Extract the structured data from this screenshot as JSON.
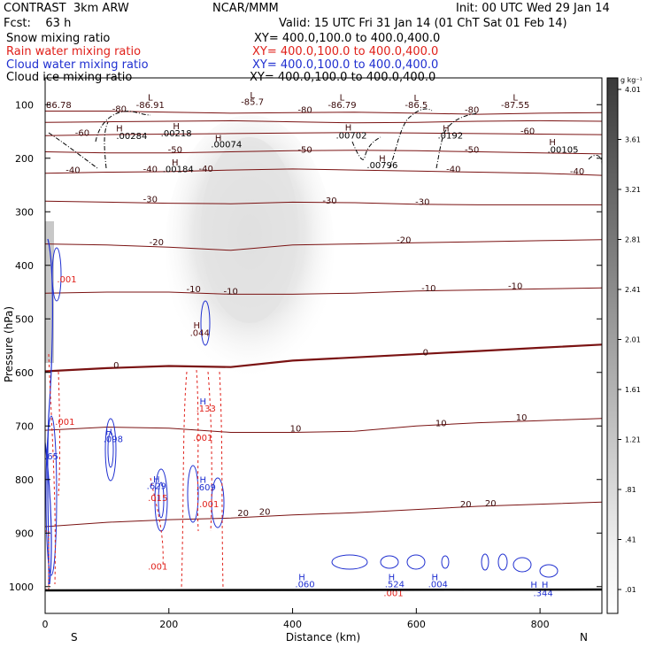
{
  "header": {
    "model": "CONTRAST  3km ARW",
    "org": "NCAR/MMM",
    "init": "Init: 00 UTC Wed 29 Jan 14",
    "fcst": "Fcst:    63 h",
    "valid": "Valid: 15 UTC Fri 31 Jan 14 (01 ChT Sat 01 Feb 14)"
  },
  "legend": [
    {
      "label": "Snow mixing ratio",
      "xy": "XY= 400.0,100.0 to 400.0,400.0",
      "color": "#000000"
    },
    {
      "label": "Rain water mixing ratio",
      "xy": "XY= 400.0,100.0 to 400.0,400.0",
      "color": "#e0201a"
    },
    {
      "label": "Cloud water mixing ratio",
      "xy": "XY= 400.0,100.0 to 400.0,400.0",
      "color": "#1f2fd0"
    },
    {
      "label": "Cloud ice mixing ratio",
      "xy": "XY= 400.0,100.0 to 400.0,400.0",
      "color": "#000000"
    }
  ],
  "chart_data": {
    "type": "contour",
    "xlabel": "Distance (km)",
    "ylabel": "Pressure (hPa)",
    "xlim": [
      0,
      900
    ],
    "ylim": [
      1050,
      50
    ],
    "x_ticks": [
      0,
      200,
      400,
      600,
      800
    ],
    "y_ticks": [
      100,
      200,
      300,
      400,
      500,
      600,
      700,
      800,
      900,
      1000
    ],
    "direction_labels": {
      "left": "S",
      "right": "N"
    },
    "colorbar": {
      "unit": "g kg⁻¹",
      "levels": [
        ".01",
        ".41",
        ".81",
        "1.21",
        "1.61",
        "2.01",
        "2.41",
        "2.81",
        "3.21",
        "3.61",
        "4.01"
      ]
    },
    "temperature_contours": [
      {
        "value": -80,
        "p": [
          112,
          112,
          114,
          116,
          115,
          114,
          116,
          118,
          116,
          115
        ]
      },
      {
        "value": -70,
        "p": [
          133,
          132,
          131,
          130,
          132,
          134,
          133,
          131,
          130,
          131
        ]
      },
      {
        "value": -60,
        "p": [
          158,
          156,
          155,
          154,
          153,
          152,
          153,
          154,
          155,
          156
        ]
      },
      {
        "value": -50,
        "p": [
          188,
          190,
          190,
          188,
          186,
          185,
          186,
          188,
          190,
          192
        ]
      },
      {
        "value": -40,
        "p": [
          228,
          226,
          225,
          222,
          220,
          222,
          224,
          226,
          228,
          232
        ]
      },
      {
        "value": -30,
        "p": [
          280,
          282,
          284,
          285,
          282,
          283,
          286,
          287,
          287,
          287
        ]
      },
      {
        "value": -20,
        "p": [
          360,
          362,
          366,
          372,
          362,
          360,
          358,
          356,
          354,
          352
        ]
      },
      {
        "value": -10,
        "p": [
          452,
          450,
          450,
          454,
          454,
          452,
          448,
          446,
          444,
          442
        ]
      },
      {
        "value": 0,
        "p": [
          598,
          592,
          588,
          590,
          578,
          572,
          566,
          560,
          554,
          548
        ]
      },
      {
        "value": 10,
        "p": [
          708,
          702,
          704,
          712,
          712,
          710,
          700,
          694,
          690,
          686
        ]
      },
      {
        "value": 20,
        "p": [
          888,
          880,
          875,
          872,
          866,
          862,
          856,
          850,
          846,
          842
        ]
      }
    ],
    "labels": [
      {
        "text": "-80",
        "x": 120,
        "p": 114
      },
      {
        "text": "-80",
        "x": 420,
        "p": 115
      },
      {
        "text": "-80",
        "x": 690,
        "p": 115
      },
      {
        "text": "-60",
        "x": 60,
        "p": 158
      },
      {
        "text": "-60",
        "x": 780,
        "p": 155
      },
      {
        "text": "-50",
        "x": 210,
        "p": 190
      },
      {
        "text": "-50",
        "x": 420,
        "p": 190
      },
      {
        "text": "-50",
        "x": 690,
        "p": 190
      },
      {
        "text": "-40",
        "x": 45,
        "p": 228
      },
      {
        "text": "-40",
        "x": 170,
        "p": 226
      },
      {
        "text": "-40",
        "x": 260,
        "p": 225
      },
      {
        "text": "-40",
        "x": 660,
        "p": 226
      },
      {
        "text": "-40",
        "x": 860,
        "p": 230
      },
      {
        "text": "-30",
        "x": 170,
        "p": 282
      },
      {
        "text": "-30",
        "x": 460,
        "p": 285
      },
      {
        "text": "-30",
        "x": 610,
        "p": 287
      },
      {
        "text": "-20",
        "x": 180,
        "p": 362
      },
      {
        "text": "-20",
        "x": 580,
        "p": 358
      },
      {
        "text": "-10",
        "x": 240,
        "p": 450
      },
      {
        "text": "-10",
        "x": 300,
        "p": 454
      },
      {
        "text": "-10",
        "x": 620,
        "p": 448
      },
      {
        "text": "-10",
        "x": 760,
        "p": 444
      },
      {
        "text": "0",
        "x": 115,
        "p": 592
      },
      {
        "text": "0",
        "x": 615,
        "p": 568
      },
      {
        "text": "10",
        "x": 405,
        "p": 710
      },
      {
        "text": "10",
        "x": 640,
        "p": 700
      },
      {
        "text": "10",
        "x": 770,
        "p": 690
      },
      {
        "text": "20",
        "x": 355,
        "p": 866
      },
      {
        "text": "20",
        "x": 320,
        "p": 868
      },
      {
        "text": "20",
        "x": 680,
        "p": 852
      },
      {
        "text": "20",
        "x": 720,
        "p": 850
      },
      {
        "text": "L",
        "x": 170,
        "p": 92
      },
      {
        "text": "L",
        "x": 335,
        "p": 88
      },
      {
        "text": "L",
        "x": 480,
        "p": 92
      },
      {
        "text": "L",
        "x": 600,
        "p": 93
      },
      {
        "text": "L",
        "x": 760,
        "p": 92
      },
      {
        "text": "-86.91",
        "x": 170,
        "p": 106
      },
      {
        "text": "-85.7",
        "x": 335,
        "p": 100
      },
      {
        "text": "-86.79",
        "x": 480,
        "p": 106
      },
      {
        "text": "-86.5",
        "x": 600,
        "p": 106
      },
      {
        "text": "-87.55",
        "x": 760,
        "p": 106
      },
      {
        "text": "86.78",
        "x": 22,
        "p": 106
      },
      {
        "text": "H",
        "x": 120,
        "p": 150
      },
      {
        "text": ".00284",
        "x": 140,
        "p": 164
      },
      {
        "text": "H",
        "x": 212,
        "p": 146
      },
      {
        "text": ".00218",
        "x": 212,
        "p": 159
      },
      {
        "text": "H",
        "x": 280,
        "p": 168
      },
      {
        "text": ".00074",
        "x": 293,
        "p": 180
      },
      {
        "text": "H",
        "x": 210,
        "p": 214
      },
      {
        "text": ".00184",
        "x": 215,
        "p": 226
      },
      {
        "text": "H",
        "x": 490,
        "p": 148
      },
      {
        "text": ".00702",
        "x": 495,
        "p": 163
      },
      {
        "text": "H",
        "x": 648,
        "p": 150
      },
      {
        "text": ".0192",
        "x": 655,
        "p": 163
      },
      {
        "text": "H",
        "x": 545,
        "p": 206
      },
      {
        "text": ".00796",
        "x": 545,
        "p": 219
      },
      {
        "text": "H",
        "x": 820,
        "p": 176
      },
      {
        "text": ".00105",
        "x": 837,
        "p": 190
      },
      {
        "text": ".001",
        "x": 35,
        "p": 432
      },
      {
        "text": "H",
        "x": 245,
        "p": 518
      },
      {
        "text": ".044",
        "x": 250,
        "p": 532
      },
      {
        "text": "H",
        "x": 255,
        "p": 660
      },
      {
        "text": ".133",
        "x": 260,
        "p": 673
      },
      {
        "text": ".001",
        "x": 255,
        "p": 728
      },
      {
        "text": ".001",
        "x": 32,
        "p": 698
      },
      {
        "text": "H",
        "x": 103,
        "p": 717
      },
      {
        "text": ".098",
        "x": 110,
        "p": 730
      },
      {
        "text": ".65",
        "x": 10,
        "p": 762
      },
      {
        "text": "H",
        "x": 180,
        "p": 805
      },
      {
        "text": ".629",
        "x": 180,
        "p": 818
      },
      {
        "text": ".015",
        "x": 182,
        "p": 840
      },
      {
        "text": "H",
        "x": 255,
        "p": 806
      },
      {
        "text": ".609",
        "x": 260,
        "p": 820
      },
      {
        "text": ".001",
        "x": 265,
        "p": 852
      },
      {
        "text": ".001",
        "x": 182,
        "p": 968
      },
      {
        "text": "H",
        "x": 415,
        "p": 988
      },
      {
        "text": ".060",
        "x": 420,
        "p": 1001
      },
      {
        "text": "H",
        "x": 560,
        "p": 988
      },
      {
        "text": ".524",
        "x": 565,
        "p": 1001
      },
      {
        "text": ".001",
        "x": 563,
        "p": 1018
      },
      {
        "text": "H",
        "x": 630,
        "p": 988
      },
      {
        "text": ".004",
        "x": 635,
        "p": 1001
      },
      {
        "text": "H",
        "x": 790,
        "p": 1002
      },
      {
        "text": "H",
        "x": 808,
        "p": 1002
      },
      {
        "text": ".344",
        "x": 805,
        "p": 1018
      }
    ]
  }
}
